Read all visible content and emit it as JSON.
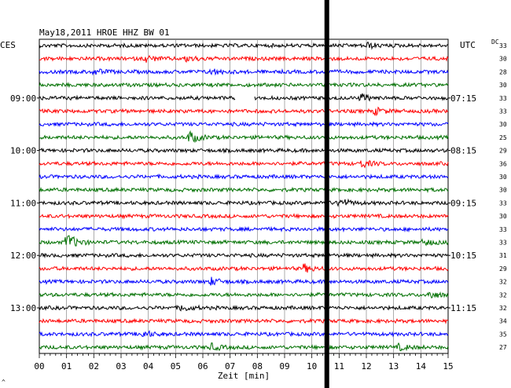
{
  "chart_data": {
    "type": "line",
    "title": "May18,2011  HROE HHZ BW 01",
    "left_tz": "CES",
    "right_tz": "UTC",
    "dc_label": "DC",
    "xlabel": "Zeit [min]",
    "xlim": [
      0,
      15
    ],
    "x_ticks": [
      "00",
      "01",
      "02",
      "03",
      "04",
      "05",
      "06",
      "07",
      "08",
      "09",
      "10",
      "11",
      "12",
      "13",
      "14",
      "15"
    ],
    "left_time_labels": [
      {
        "row": 4,
        "text": "09:00"
      },
      {
        "row": 8,
        "text": "10:00"
      },
      {
        "row": 12,
        "text": "11:00"
      },
      {
        "row": 16,
        "text": "12:00"
      },
      {
        "row": 20,
        "text": "13:00"
      }
    ],
    "right_time_labels": [
      {
        "row": 4,
        "text": "07:15"
      },
      {
        "row": 8,
        "text": "08:15"
      },
      {
        "row": 12,
        "text": "09:15"
      },
      {
        "row": 16,
        "text": "10:15"
      },
      {
        "row": 20,
        "text": "11:15"
      }
    ],
    "dc_values": [
      "33",
      "30",
      "28",
      "30",
      "33",
      "33",
      "30",
      "25",
      "29",
      "36",
      "30",
      "30",
      "33",
      "30",
      "33",
      "33",
      "31",
      "29",
      "32",
      "32",
      "32",
      "34",
      "35",
      "27"
    ],
    "trace_colors": [
      "#000000",
      "#ff0000",
      "#0000ff",
      "#007000"
    ],
    "gap": {
      "row": 4,
      "x": [
        7.2,
        7.9
      ]
    },
    "marker_line": {
      "x": 10.55,
      "color": "#000000"
    },
    "events": [
      {
        "row": 0,
        "x": 12.0,
        "amp": 1.2
      },
      {
        "row": 1,
        "x": 3.9,
        "amp": 1.3
      },
      {
        "row": 1,
        "x": 5.4,
        "amp": 1.3
      },
      {
        "row": 2,
        "x": 2.0,
        "amp": 1.2
      },
      {
        "row": 2,
        "x": 6.3,
        "amp": 1.2
      },
      {
        "row": 4,
        "x": 11.8,
        "amp": 1.5
      },
      {
        "row": 5,
        "x": 12.3,
        "amp": 1.4
      },
      {
        "row": 7,
        "x": 5.5,
        "amp": 2.5
      },
      {
        "row": 9,
        "x": 11.8,
        "amp": 1.6
      },
      {
        "row": 12,
        "x": 11.0,
        "amp": 2.0
      },
      {
        "row": 15,
        "x": 1.0,
        "amp": 4.0
      },
      {
        "row": 15,
        "x": 14.1,
        "amp": 1.3
      },
      {
        "row": 17,
        "x": 9.7,
        "amp": 1.6
      },
      {
        "row": 18,
        "x": 6.3,
        "amp": 1.5
      },
      {
        "row": 19,
        "x": 14.3,
        "amp": 1.6
      },
      {
        "row": 20,
        "x": 5.2,
        "amp": 1.3
      },
      {
        "row": 22,
        "x": 3.8,
        "amp": 1.4
      },
      {
        "row": 23,
        "x": 6.3,
        "amp": 1.3
      },
      {
        "row": 23,
        "x": 13.2,
        "amp": 1.2
      }
    ]
  },
  "footer": {
    "corner": "^"
  }
}
